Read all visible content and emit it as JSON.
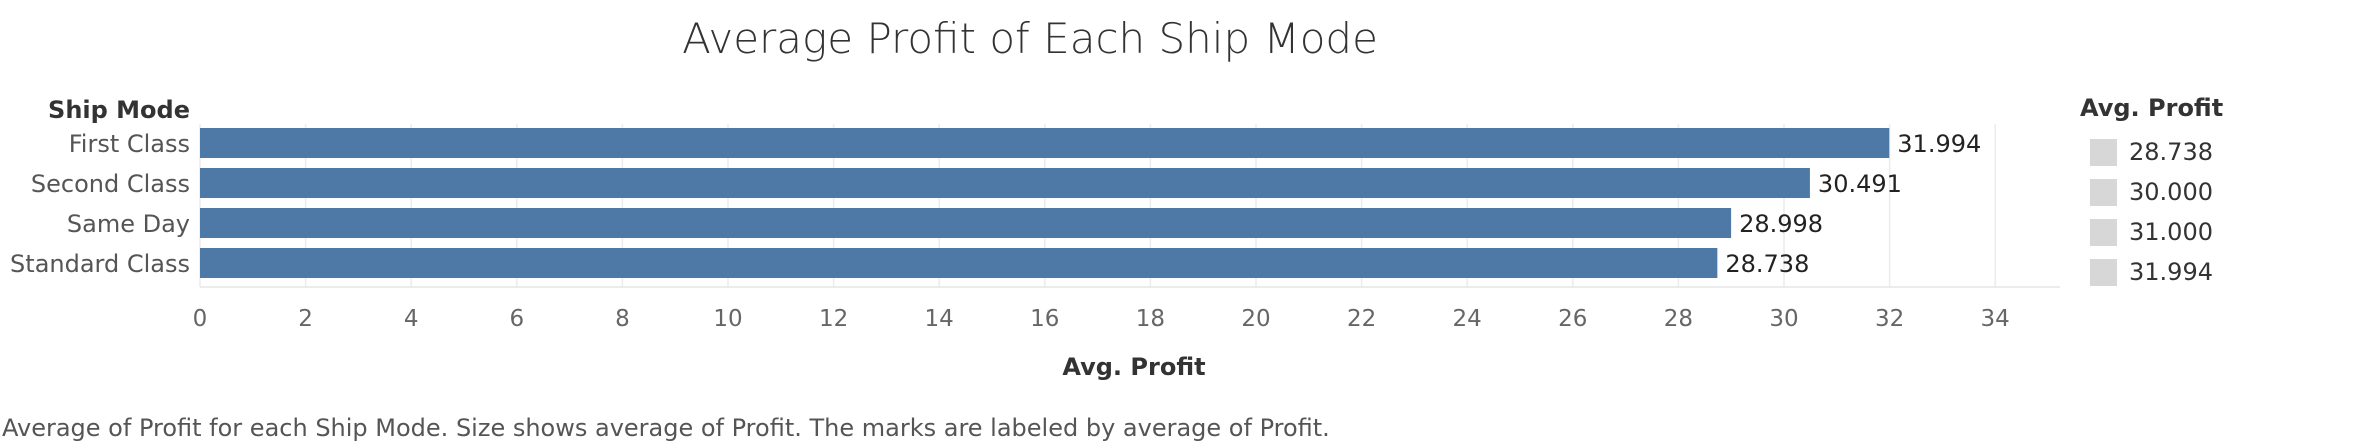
{
  "chart_data": {
    "type": "bar",
    "orientation": "horizontal",
    "title": "Average Profit of Each Ship Mode",
    "category_header": "Ship Mode",
    "xlabel": "Avg. Profit",
    "categories": [
      "First Class",
      "Second Class",
      "Same Day",
      "Standard Class"
    ],
    "values": [
      31.994,
      30.491,
      28.998,
      28.738
    ],
    "data_labels": [
      "31.994",
      "30.491",
      "28.998",
      "28.738"
    ],
    "xlim": [
      0,
      35.3
    ],
    "x_ticks": [
      0,
      2,
      4,
      6,
      8,
      10,
      12,
      14,
      16,
      18,
      20,
      22,
      24,
      26,
      28,
      30,
      32,
      34
    ],
    "grid": "vertical lines at each tick",
    "bar_color": "#4e79a7",
    "legend": {
      "title": "Avg. Profit",
      "placement": "right",
      "items": [
        "28.738",
        "30.000",
        "31.000",
        "31.994"
      ]
    },
    "caption": "Average of Profit for each Ship Mode.  Size shows average of Profit.  The marks are labeled by average of Profit."
  }
}
